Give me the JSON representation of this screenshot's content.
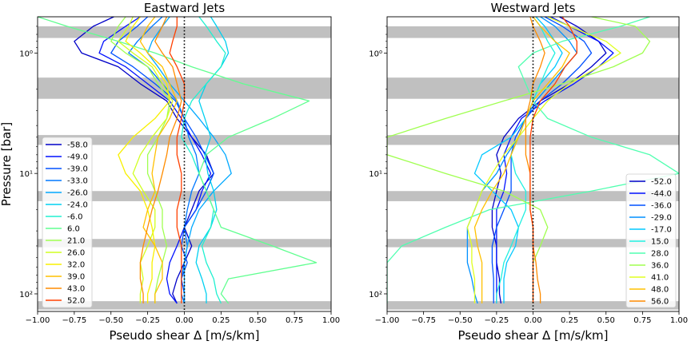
{
  "chart_data": [
    {
      "type": "line",
      "title": "Eastward Jets",
      "xlabel": "Pseudo shear Δ [m/s/km]",
      "ylabel": "Pressure [bar]",
      "xlim": [
        -1.0,
        1.0
      ],
      "ylim_log_top_to_bottom": [
        0.5,
        140
      ],
      "yscale": "log-inverted",
      "x_ticks": [
        "−1.00",
        "−0.75",
        "−0.50",
        "−0.25",
        "0.00",
        "0.25",
        "0.50",
        "0.75",
        "1.00"
      ],
      "y_ticks": [
        {
          "value": 1,
          "label": "10⁰"
        },
        {
          "value": 10,
          "label": "10¹"
        },
        {
          "value": 100,
          "label": "10²"
        }
      ],
      "legend_position": "lower-left",
      "reference_line_x": 0.0,
      "gray_bands_bar": [
        [
          0.6,
          0.75
        ],
        [
          1.6,
          2.4
        ],
        [
          4.8,
          5.8
        ],
        [
          14.0,
          17.0
        ],
        [
          35.0,
          41.0
        ],
        [
          115,
          135
        ]
      ],
      "y_levels": [
        0.5,
        0.6,
        0.8,
        1.0,
        1.3,
        1.8,
        2.5,
        3.5,
        5,
        7,
        10,
        14,
        20,
        28,
        40,
        55,
        75,
        100,
        120
      ],
      "series": [
        {
          "name": "-58.0",
          "color": "#0000c8",
          "x": [
            -0.48,
            -0.62,
            -0.75,
            -0.7,
            -0.45,
            -0.3,
            -0.12,
            -0.05,
            0.05,
            0.15,
            0.2,
            0.1,
            0.05,
            0.0,
            0.05,
            0.0,
            -0.05,
            -0.08,
            -0.05
          ]
        },
        {
          "name": "-49.0",
          "color": "#0010ff",
          "x": [
            -0.3,
            -0.4,
            -0.55,
            -0.58,
            -0.4,
            -0.25,
            -0.1,
            -0.02,
            0.05,
            0.12,
            0.18,
            0.12,
            0.08,
            0.0,
            -0.05,
            -0.1,
            -0.12,
            -0.1,
            -0.05
          ]
        },
        {
          "name": "-39.0",
          "color": "#0050ff",
          "x": [
            -0.25,
            -0.32,
            -0.45,
            -0.5,
            -0.35,
            -0.2,
            -0.06,
            0.0,
            0.08,
            0.14,
            0.2,
            0.15,
            0.08,
            0.0,
            -0.02,
            0.02,
            -0.02,
            0.0,
            0.0
          ]
        },
        {
          "name": "-33.0",
          "color": "#0078ff",
          "x": [
            -0.15,
            -0.22,
            -0.32,
            -0.38,
            -0.25,
            -0.15,
            -0.05,
            0.0,
            0.03,
            0.08,
            0.1,
            0.05,
            0.02,
            0.0,
            0.02,
            0.0,
            -0.02,
            -0.02,
            0.0
          ]
        },
        {
          "name": "-26.0",
          "color": "#00a8ff",
          "x": [
            -0.1,
            -0.15,
            -0.22,
            -0.25,
            -0.18,
            -0.1,
            0.0,
            0.1,
            0.2,
            0.28,
            0.32,
            0.2,
            0.1,
            0.05,
            0.02,
            0.0,
            0.0,
            0.0,
            0.0
          ]
        },
        {
          "name": "-24.0",
          "color": "#00d0f0",
          "x": [
            0.18,
            0.22,
            0.28,
            0.3,
            0.25,
            0.15,
            0.1,
            0.14,
            0.18,
            0.14,
            0.16,
            0.2,
            0.22,
            0.18,
            0.1,
            0.08,
            0.12,
            0.15,
            0.15
          ]
        },
        {
          "name": "-6.0",
          "color": "#20f0d0",
          "x": [
            0.1,
            0.15,
            0.22,
            0.28,
            0.25,
            0.15,
            0.05,
            0.0,
            -0.02,
            0.05,
            0.1,
            0.15,
            0.2,
            0.18,
            0.12,
            0.15,
            0.2,
            0.22,
            0.25
          ]
        },
        {
          "name": "6.0",
          "color": "#60ff90",
          "x": [
            -1.0,
            -0.8,
            -0.45,
            -0.2,
            0.05,
            0.4,
            0.85,
            0.6,
            0.3,
            0.15,
            0.1,
            0.15,
            0.2,
            0.25,
            0.6,
            0.9,
            0.3,
            0.25,
            0.3
          ]
        },
        {
          "name": "21.0",
          "color": "#a0ff50",
          "x": [
            -0.4,
            -0.45,
            -0.5,
            -0.4,
            -0.25,
            -0.18,
            -0.1,
            -0.12,
            -0.18,
            -0.25,
            -0.25,
            -0.2,
            -0.15,
            -0.15,
            -0.12,
            -0.15,
            -0.18,
            -0.2,
            -0.2
          ]
        },
        {
          "name": "26.0",
          "color": "#d0ff20",
          "x": [
            -0.35,
            -0.38,
            -0.45,
            -0.35,
            -0.22,
            -0.15,
            -0.08,
            -0.12,
            -0.22,
            -0.3,
            -0.35,
            -0.28,
            -0.2,
            -0.2,
            -0.25,
            -0.3,
            -0.28,
            -0.3,
            -0.3
          ]
        },
        {
          "name": "32.0",
          "color": "#f8f000",
          "x": [
            -0.3,
            -0.35,
            -0.4,
            -0.3,
            -0.2,
            -0.12,
            -0.1,
            -0.2,
            -0.35,
            -0.45,
            -0.4,
            -0.3,
            -0.25,
            -0.22,
            -0.2,
            -0.22,
            -0.22,
            -0.25,
            -0.25
          ]
        },
        {
          "name": "39.0",
          "color": "#ffc000",
          "x": [
            -0.2,
            -0.25,
            -0.3,
            -0.25,
            -0.15,
            -0.1,
            -0.05,
            -0.1,
            -0.18,
            -0.2,
            -0.22,
            -0.2,
            -0.25,
            -0.28,
            -0.2,
            -0.15,
            -0.15,
            -0.2,
            -0.2
          ]
        },
        {
          "name": "43.0",
          "color": "#ff8c00",
          "x": [
            -0.12,
            -0.15,
            -0.2,
            -0.15,
            -0.08,
            -0.05,
            -0.02,
            -0.05,
            -0.1,
            -0.12,
            -0.15,
            -0.18,
            -0.22,
            -0.25,
            -0.28,
            -0.3,
            -0.3,
            -0.28,
            -0.28
          ]
        },
        {
          "name": "52.0",
          "color": "#ff4000",
          "x": [
            -0.05,
            -0.05,
            -0.08,
            -0.1,
            -0.05,
            0.0,
            0.0,
            -0.02,
            -0.05,
            -0.05,
            -0.02,
            -0.02,
            -0.05,
            -0.05,
            -0.02,
            -0.02,
            -0.02,
            -0.02,
            -0.02
          ]
        }
      ]
    },
    {
      "type": "line",
      "title": "Westward Jets",
      "xlabel": "Pseudo shear Δ [m/s/km]",
      "ylabel": "",
      "xlim": [
        -1.0,
        1.0
      ],
      "ylim_log_top_to_bottom": [
        0.5,
        140
      ],
      "yscale": "log-inverted",
      "x_ticks": [
        "−1.00",
        "−0.75",
        "−0.50",
        "−0.25",
        "0.00",
        "0.25",
        "0.50",
        "0.75",
        "1.00"
      ],
      "y_ticks": [
        {
          "value": 1,
          "label": "10⁰"
        },
        {
          "value": 10,
          "label": "10¹"
        },
        {
          "value": 100,
          "label": "10²"
        }
      ],
      "legend_position": "lower-right",
      "reference_line_x": 0.0,
      "gray_bands_bar": [
        [
          0.6,
          0.75
        ],
        [
          1.6,
          2.4
        ],
        [
          4.8,
          5.8
        ],
        [
          14.0,
          17.0
        ],
        [
          35.0,
          41.0
        ],
        [
          115,
          135
        ]
      ],
      "y_levels": [
        0.5,
        0.6,
        0.8,
        1.0,
        1.3,
        1.8,
        2.5,
        3.5,
        5,
        7,
        10,
        14,
        20,
        28,
        40,
        55,
        75,
        100,
        120
      ],
      "series": [
        {
          "name": "-52.0",
          "color": "#0000c8",
          "x": [
            0.18,
            0.3,
            0.45,
            0.5,
            0.4,
            0.25,
            0.05,
            -0.1,
            -0.2,
            -0.25,
            -0.22,
            -0.25,
            -0.28,
            -0.28,
            -0.25,
            -0.25,
            -0.23,
            -0.23,
            -0.22
          ]
        },
        {
          "name": "-44.0",
          "color": "#0010ff",
          "x": [
            0.12,
            0.25,
            0.45,
            0.55,
            0.45,
            0.28,
            0.08,
            -0.08,
            -0.15,
            -0.2,
            -0.18,
            -0.2,
            -0.25,
            -0.25,
            -0.25,
            -0.25,
            -0.25,
            -0.25,
            -0.25
          ]
        },
        {
          "name": "-36.0",
          "color": "#0050ff",
          "x": [
            0.08,
            0.2,
            0.35,
            0.4,
            0.32,
            0.2,
            0.05,
            -0.05,
            -0.12,
            -0.15,
            -0.15,
            -0.15,
            -0.2,
            -0.25,
            -0.28,
            -0.28,
            -0.27,
            -0.27,
            -0.27
          ]
        },
        {
          "name": "-29.0",
          "color": "#0090ff",
          "x": [
            0.05,
            0.15,
            0.25,
            0.3,
            0.22,
            0.12,
            0.02,
            -0.05,
            -0.1,
            -0.18,
            -0.25,
            -0.35,
            -0.4,
            -0.45,
            -0.45,
            -0.45,
            -0.42,
            -0.4,
            -0.38
          ]
        },
        {
          "name": "-17.0",
          "color": "#00c8ff",
          "x": [
            0.02,
            0.08,
            0.15,
            0.2,
            0.15,
            0.05,
            0.0,
            -0.05,
            -0.15,
            -0.35,
            -0.4,
            -0.28,
            -0.15,
            -0.1,
            -0.12,
            -0.18,
            -0.2,
            -0.2,
            -0.2
          ]
        },
        {
          "name": "15.0",
          "color": "#20f0e0",
          "x": [
            0.0,
            0.05,
            0.1,
            0.15,
            0.1,
            0.05,
            0.0,
            -0.05,
            -0.1,
            -0.15,
            -0.12,
            -0.05,
            -0.05,
            -0.1,
            -0.15,
            -0.2,
            -0.22,
            -0.25,
            -0.25
          ]
        },
        {
          "name": "28.0",
          "color": "#50ffb0",
          "x": [
            0.8,
            0.6,
            0.2,
            0.0,
            -0.1,
            -0.05,
            0.0,
            0.1,
            0.4,
            0.8,
            1.0,
            0.4,
            -0.3,
            -0.6,
            -0.9,
            -1.0,
            -1.0,
            -1.0,
            -1.0
          ]
        },
        {
          "name": "36.0",
          "color": "#a0ff50",
          "x": [
            0.4,
            0.7,
            0.8,
            0.75,
            0.55,
            0.2,
            -0.2,
            -0.6,
            -1.0,
            -1.0,
            -0.6,
            -0.2,
            0.05,
            0.1,
            0.05,
            0.0,
            0.0,
            0.0,
            0.0
          ]
        },
        {
          "name": "41.0",
          "color": "#e0ff20",
          "x": [
            0.1,
            0.25,
            0.5,
            0.6,
            0.45,
            0.25,
            0.1,
            0.0,
            -0.1,
            -0.2,
            -0.28,
            -0.35,
            -0.4,
            -0.45,
            -0.42,
            -0.42,
            -0.4,
            -0.4,
            -0.4
          ]
        },
        {
          "name": "48.0",
          "color": "#ffc000",
          "x": [
            0.0,
            0.05,
            0.15,
            0.25,
            0.2,
            0.1,
            0.0,
            -0.05,
            -0.1,
            -0.15,
            -0.2,
            -0.28,
            -0.35,
            -0.4,
            -0.38,
            -0.35,
            -0.35,
            -0.35,
            -0.35
          ]
        },
        {
          "name": "56.0",
          "color": "#ff8c00",
          "x": [
            -0.02,
            0.0,
            0.05,
            0.08,
            0.05,
            0.0,
            -0.02,
            -0.05,
            -0.05,
            -0.05,
            -0.02,
            -0.02,
            -0.02,
            0.0,
            0.0,
            0.02,
            0.03,
            0.05,
            0.05
          ]
        },
        {
          "name": "",
          "color": "#ff4000",
          "x": [
            0.2,
            0.25,
            0.3,
            0.3,
            0.22,
            0.15,
            0.05,
            0.0,
            -0.02,
            -0.02,
            -0.02,
            -0.02,
            -0.02,
            0.0,
            0.0,
            0.0,
            0.0,
            0.0,
            0.0
          ]
        }
      ]
    }
  ]
}
